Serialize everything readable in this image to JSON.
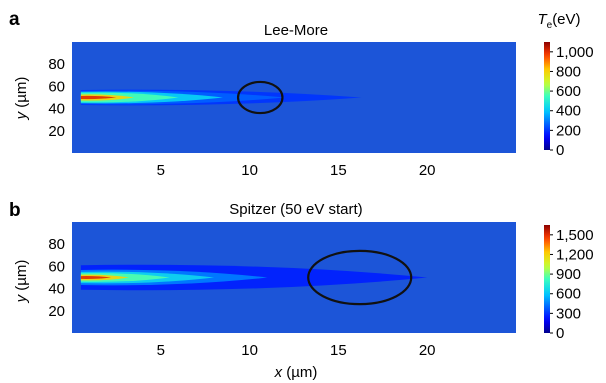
{
  "chart_data": [
    {
      "type": "heatmap",
      "panel_letter": "a",
      "title": "Lee-More",
      "xlabel": "",
      "ylabel": "y (µm)",
      "ylabel_parts": [
        "y",
        " (µm)"
      ],
      "xlim": [
        0,
        25
      ],
      "ylim": [
        0,
        100
      ],
      "xticks": [
        5,
        10,
        15,
        20
      ],
      "yticks": [
        20,
        40,
        60,
        80
      ],
      "colorbar": {
        "label": "Te(eV)",
        "label_parts": [
          "T",
          "e",
          "(eV)"
        ],
        "ticks": [
          0,
          200,
          400,
          600,
          800,
          1000
        ],
        "tick_labels": [
          "0",
          "200",
          "400",
          "600",
          "800",
          "1,000"
        ],
        "range": [
          0,
          1100
        ]
      },
      "background_color": "#1c55d8",
      "features": [
        {
          "x": [
            0.5,
            16.3
          ],
          "y_center": 50,
          "half_height": 8,
          "peak": 200
        },
        {
          "x": [
            0.5,
            12
          ],
          "y_center": 50,
          "half_height": 7,
          "peak": 260
        },
        {
          "x": [
            0.5,
            8.5
          ],
          "y_center": 50,
          "half_height": 6,
          "peak": 420
        },
        {
          "x": [
            0.5,
            6
          ],
          "y_center": 50,
          "half_height": 5,
          "peak": 560
        },
        {
          "x": [
            0.5,
            3.5
          ],
          "y_center": 50,
          "half_height": 3.2,
          "peak": 800
        },
        {
          "x": [
            0.5,
            2.5
          ],
          "y_center": 50,
          "half_height": 1.6,
          "peak": 1000
        }
      ],
      "annotation_ellipse": {
        "cx": 10.6,
        "cy": 50,
        "rx": 1.25,
        "ry": 14
      }
    },
    {
      "type": "heatmap",
      "panel_letter": "b",
      "title": "Spitzer (50 eV start)",
      "xlabel": "x (µm)",
      "xlabel_parts": [
        "x",
        " (µm)"
      ],
      "ylabel": "y (µm)",
      "ylabel_parts": [
        "y",
        " (µm)"
      ],
      "xlim": [
        0,
        25
      ],
      "ylim": [
        0,
        100
      ],
      "xticks": [
        5,
        10,
        15,
        20
      ],
      "yticks": [
        20,
        40,
        60,
        80
      ],
      "colorbar": {
        "label": "",
        "ticks": [
          0,
          300,
          600,
          900,
          1200,
          1500
        ],
        "tick_labels": [
          "0",
          "300",
          "600",
          "900",
          "1,200",
          "1,500"
        ],
        "range": [
          0,
          1650
        ]
      },
      "background_color": "#1c55d8",
      "features": [
        {
          "x": [
            0.5,
            20
          ],
          "y_center": 50,
          "half_height": 13,
          "peak": 260
        },
        {
          "x": [
            0.5,
            11
          ],
          "y_center": 50,
          "half_height": 8,
          "peak": 450
        },
        {
          "x": [
            0.5,
            8
          ],
          "y_center": 50,
          "half_height": 6,
          "peak": 650
        },
        {
          "x": [
            0.5,
            5.5
          ],
          "y_center": 50,
          "half_height": 4.5,
          "peak": 850
        },
        {
          "x": [
            0.5,
            3.2
          ],
          "y_center": 50,
          "half_height": 3,
          "peak": 1200
        },
        {
          "x": [
            0.5,
            2.2
          ],
          "y_center": 50,
          "half_height": 1.5,
          "peak": 1500
        }
      ],
      "annotation_ellipse": {
        "cx": 16.2,
        "cy": 50,
        "rx": 2.9,
        "ry": 24
      }
    }
  ]
}
